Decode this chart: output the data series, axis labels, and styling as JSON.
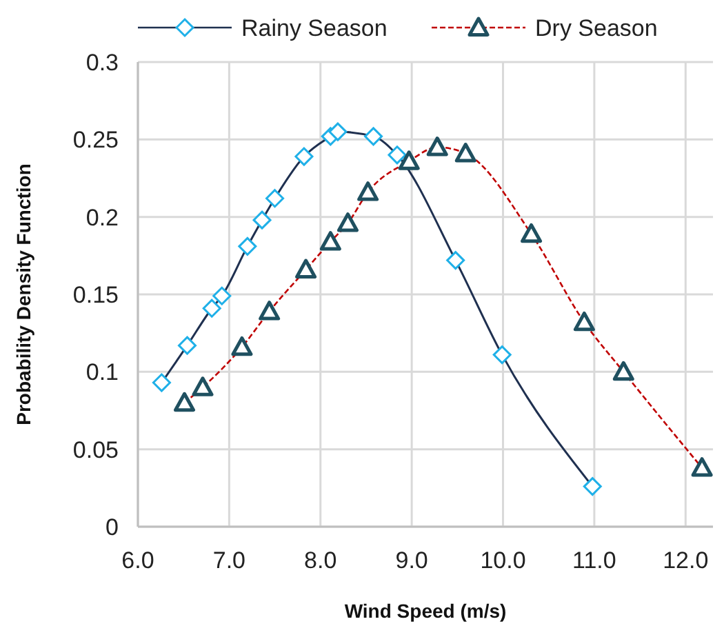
{
  "chart_data": {
    "type": "line",
    "xlabel": "Wind Speed (m/s)",
    "ylabel": "Probability Density Function",
    "xlim": [
      6,
      12.3
    ],
    "xticks": [
      {
        "value": 6,
        "label": "6.0"
      },
      {
        "value": 7,
        "label": "7.0"
      },
      {
        "value": 8,
        "label": "8.0"
      },
      {
        "value": 9,
        "label": "9.0"
      },
      {
        "value": 10,
        "label": "10.0"
      },
      {
        "value": 11,
        "label": "11.0"
      },
      {
        "value": 12,
        "label": "12.0"
      }
    ],
    "ylim": [
      0,
      0.3
    ],
    "yticks": [
      0,
      0.05,
      0.1,
      0.15,
      0.2,
      0.25,
      0.3
    ],
    "grid": true,
    "legend": "top",
    "series": [
      {
        "name": "Rainy Season",
        "color": "#1f3050",
        "marker": "diamond",
        "line_style": "solid",
        "x": [
          6.26,
          6.54,
          6.81,
          6.92,
          7.2,
          7.36,
          7.5,
          7.82,
          8.11,
          8.19,
          8.58,
          8.84,
          9.48,
          9.99,
          10.98
        ],
        "values": [
          0.093,
          0.117,
          0.141,
          0.149,
          0.181,
          0.198,
          0.212,
          0.239,
          0.252,
          0.255,
          0.252,
          0.24,
          0.172,
          0.111,
          0.026
        ]
      },
      {
        "name": "Dry Season",
        "color": "#c00000",
        "marker": "triangle",
        "line_style": "dashed",
        "x": [
          6.51,
          6.71,
          7.14,
          7.44,
          7.84,
          8.11,
          8.3,
          8.52,
          8.97,
          9.28,
          9.59,
          10.31,
          10.89,
          11.32,
          12.18
        ],
        "values": [
          0.08,
          0.09,
          0.116,
          0.139,
          0.166,
          0.184,
          0.196,
          0.216,
          0.236,
          0.245,
          0.241,
          0.189,
          0.132,
          0.1,
          0.038
        ]
      }
    ]
  }
}
